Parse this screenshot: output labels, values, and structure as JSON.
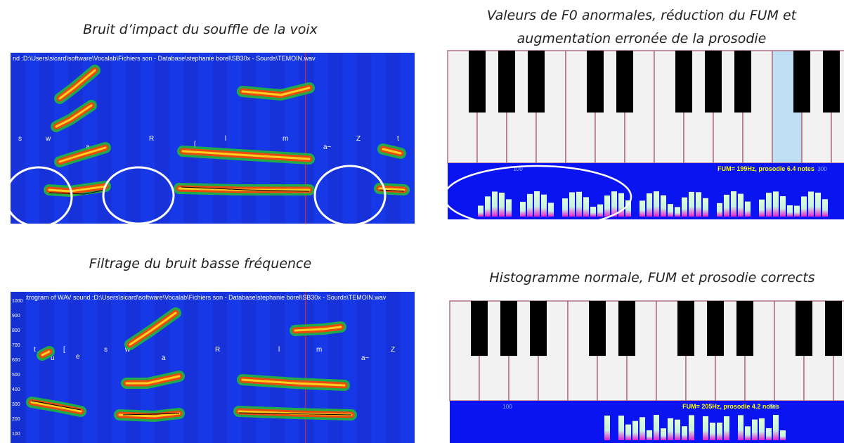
{
  "panels": [
    {
      "caption": "Bruit d’impact du souffle de la voix",
      "header": "nd :D:\\Users\\sicard\\software\\Vocalab\\Fichiers son - Database\\stephanie borel\\SB30x - Sourds\\TEMOIN.wav",
      "phonemes": [
        "s",
        "w",
        "a",
        "R",
        "[",
        "l",
        "m",
        "a~",
        "Z",
        "t"
      ]
    },
    {
      "caption_lines": [
        "Valeurs de F0 anormales, réduction du FUM et",
        "augmentation erronée de la prosodie"
      ],
      "fum": "FUM= 199Hz, prosodie 6.4 notes",
      "axis_labels": [
        "100",
        "300"
      ]
    },
    {
      "caption": "Filtrage du bruit basse fréquence",
      "header": "Spectrogram of WAV sound :D:\\Users\\sicard\\software\\Vocalab\\Fichiers son - Database\\stephanie borel\\SB30x - Sourds\\TEMOIN.wav",
      "yaxis": [
        "1000",
        "900",
        "800",
        "700",
        "600",
        "500",
        "400",
        "300",
        "200",
        "100"
      ],
      "phonemes": [
        "t",
        "u",
        "[",
        "e",
        "s",
        "w",
        "a",
        "R",
        "l",
        "m",
        "a~",
        "Z"
      ]
    },
    {
      "caption": "Histogramme normale, FUM et prosodie corrects",
      "fum": "FUM= 205Hz, prosodie 4.2 notes",
      "axis_labels": [
        "100",
        "300"
      ]
    }
  ]
}
